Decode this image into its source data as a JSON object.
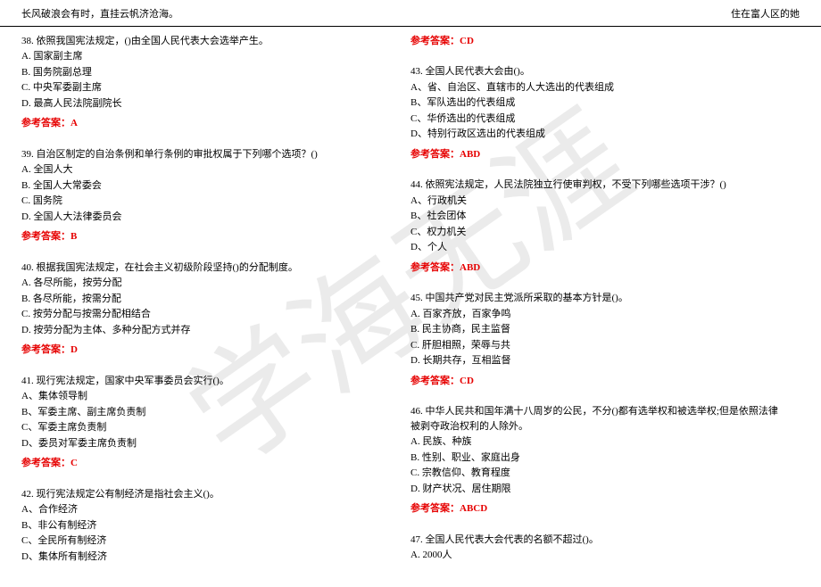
{
  "colors": {
    "text": "#000000",
    "answer": "#e60000",
    "background": "#ffffff",
    "rule": "#000000",
    "watermark": "rgba(0,0,0,0.08)"
  },
  "typography": {
    "body_font": "SimSun",
    "body_size_pt": 9,
    "watermark_font": "KaiTi",
    "watermark_size_pt": 100
  },
  "header": {
    "left": "长风破浪会有时，直挂云帆济沧海。",
    "right": "住在富人区的她"
  },
  "watermark": "学海无涯",
  "answer_label_prefix": "参考答案：",
  "left_col": {
    "questions": [
      {
        "stem": "38. 依照我国宪法规定，()由全国人民代表大会选举产生。",
        "options": [
          "A. 国家副主席",
          "B. 国务院副总理",
          "C. 中央军委副主席",
          "D. 最高人民法院副院长"
        ],
        "answer": "A"
      },
      {
        "stem": "39. 自治区制定的自治条例和单行条例的审批权属于下列哪个选项？()",
        "options": [
          "A. 全国人大",
          "B. 全国人大常委会",
          "C. 国务院",
          "D. 全国人大法律委员会"
        ],
        "answer": "B"
      },
      {
        "stem": "40. 根据我国宪法规定，在社会主义初级阶段坚持()的分配制度。",
        "options": [
          "A. 各尽所能，按劳分配",
          "B. 各尽所能，按需分配",
          "C. 按劳分配与按需分配相结合",
          "D. 按劳分配为主体、多种分配方式并存"
        ],
        "answer": "D"
      },
      {
        "stem": "41. 现行宪法规定，国家中央军事委员会实行()。",
        "options": [
          "A、集体领导制",
          "B、军委主席、副主席负责制",
          "C、军委主席负责制",
          "D、委员对军委主席负责制"
        ],
        "answer": "C"
      },
      {
        "stem": "42. 现行宪法规定公有制经济是指社会主义()。",
        "options": [
          "A、合作经济",
          "B、非公有制经济",
          "C、全民所有制经济",
          "D、集体所有制经济"
        ],
        "answer": ""
      }
    ]
  },
  "right_col": {
    "top_answer": "CD",
    "questions": [
      {
        "stem": "43. 全国人民代表大会由()。",
        "options": [
          "A、省、自治区、直辖市的人大选出的代表组成",
          "B、军队选出的代表组成",
          "C、华侨选出的代表组成",
          "D、特别行政区选出的代表组成"
        ],
        "answer": "ABD"
      },
      {
        "stem": "44. 依照宪法规定，人民法院独立行使审判权，不受下列哪些选项干涉？()",
        "options": [
          "A、行政机关",
          "B、社会团体",
          "C、权力机关",
          "D、个人"
        ],
        "answer": "ABD"
      },
      {
        "stem": "45. 中国共产党对民主党派所采取的基本方针是()。",
        "options": [
          "A. 百家齐放，百家争鸣",
          "B. 民主协商，民主监督",
          "C. 肝胆相照，荣辱与共",
          "D. 长期共存，互相监督"
        ],
        "answer": "CD"
      },
      {
        "stem": "46. 中华人民共和国年满十八周岁的公民，不分()都有选举权和被选举权;但是依照法律被剥夺政治权利的人除外。",
        "options": [
          "A. 民族、种族",
          "B. 性别、职业、家庭出身",
          "C. 宗教信仰、教育程度",
          "D. 财产状况、居住期限"
        ],
        "answer": "ABCD"
      },
      {
        "stem": "47. 全国人民代表大会代表的名额不超过()。",
        "options": [
          "A. 2000人"
        ],
        "answer": ""
      }
    ]
  }
}
